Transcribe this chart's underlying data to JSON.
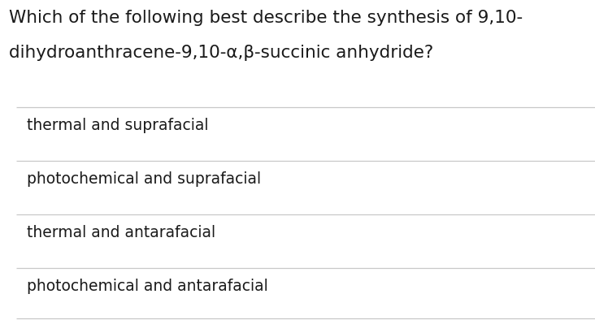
{
  "title_line1": "Which of the following best describe the synthesis of 9,10-",
  "title_line2": "dihydroanthracene-9,10-α,β-succinic anhydride?",
  "options": [
    "thermal and suprafacial",
    "photochemical and suprafacial",
    "thermal and antarafacial",
    "photochemical and antarafacial"
  ],
  "background_color": "#ffffff",
  "text_color": "#1a1a1a",
  "line_color": "#c8c8c8",
  "title_fontsize": 15.5,
  "option_fontsize": 13.5,
  "fig_width": 7.32,
  "fig_height": 3.94,
  "dpi": 100
}
